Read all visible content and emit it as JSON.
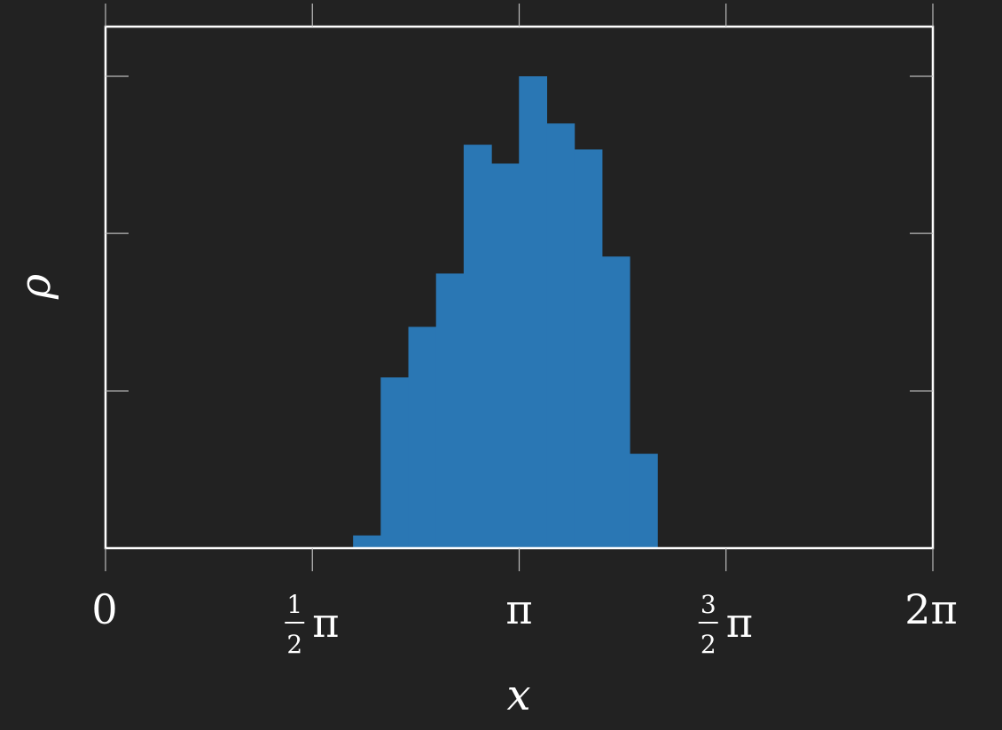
{
  "chart_data": {
    "type": "bar",
    "title": "",
    "xlabel": "x",
    "ylabel": "ρ",
    "xlim": [
      0,
      6.2832
    ],
    "ylim": [
      0,
      1
    ],
    "x_tick_labels": [
      {
        "value": 0,
        "num": "",
        "den": "",
        "main": "0"
      },
      {
        "value": 1.5708,
        "num": "1",
        "den": "2",
        "main": "π"
      },
      {
        "value": 3.1416,
        "num": "",
        "den": "",
        "main": "π"
      },
      {
        "value": 4.7124,
        "num": "3",
        "den": "2",
        "main": "π"
      },
      {
        "value": 6.2832,
        "num": "",
        "den": "",
        "main": "2π"
      }
    ],
    "y_ticks": [
      0.333,
      0.667,
      1.0
    ],
    "bin_edges": [
      1.88,
      2.09,
      2.3,
      2.51,
      2.72,
      2.93,
      3.14,
      3.35,
      3.56,
      3.77,
      3.98,
      4.19
    ],
    "values": [
      0.027,
      0.362,
      0.469,
      0.582,
      0.855,
      0.815,
      1.0,
      0.9,
      0.845,
      0.618,
      0.2
    ],
    "colors": {
      "bar": "#2a77b4",
      "baseline": "#8fb3d6",
      "frame": "#ffffff",
      "tick": "#bbbbbb",
      "background": "#222222"
    }
  }
}
